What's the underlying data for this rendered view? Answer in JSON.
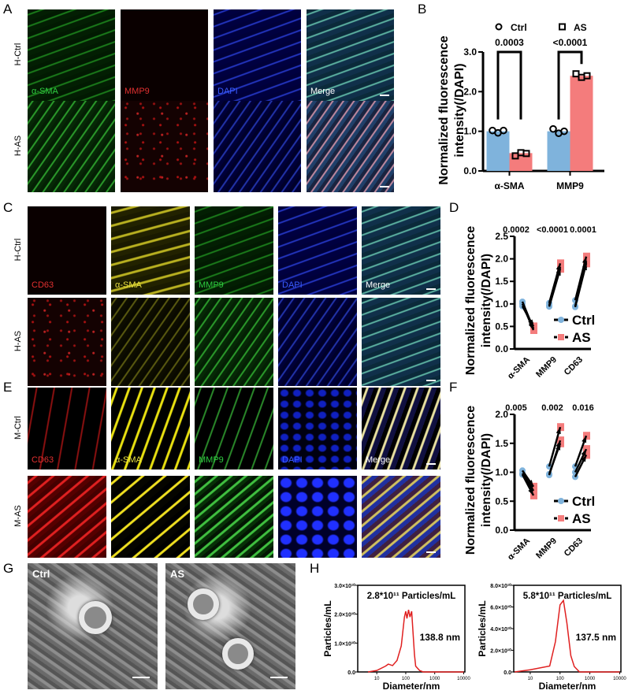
{
  "panel_letters": {
    "A": "A",
    "B": "B",
    "C": "C",
    "D": "D",
    "E": "E",
    "F": "F",
    "G": "G",
    "H": "H"
  },
  "panel_A": {
    "rows": [
      "H-Ctrl",
      "H-AS"
    ],
    "channels": [
      {
        "label": "α-SMA",
        "color": "#2ecc40"
      },
      {
        "label": "MMP9",
        "color": "#e03030"
      },
      {
        "label": "DAPI",
        "color": "#3a5cff"
      },
      {
        "label": "Merge",
        "color": "#ffffff"
      }
    ]
  },
  "panel_C": {
    "rows": [
      "H-Ctrl",
      "H-AS"
    ],
    "channels": [
      {
        "label": "CD63",
        "color": "#e03030"
      },
      {
        "label": "α-SMA",
        "color": "#e8e040"
      },
      {
        "label": "MMP9",
        "color": "#2ecc40"
      },
      {
        "label": "DAPI",
        "color": "#3a5cff"
      },
      {
        "label": "Merge",
        "color": "#ffffff"
      }
    ]
  },
  "panel_E": {
    "rows": [
      "M-Ctrl",
      "M-AS"
    ],
    "channels": [
      {
        "label": "CD63",
        "color": "#e03030"
      },
      {
        "label": "α-SMA",
        "color": "#e8e040"
      },
      {
        "label": "MMP9",
        "color": "#2ecc40"
      },
      {
        "label": "DAPI",
        "color": "#3a5cff"
      },
      {
        "label": "Merge",
        "color": "#ffffff"
      }
    ]
  },
  "panel_G": {
    "labels": [
      "Ctrl",
      "AS"
    ]
  },
  "colors": {
    "ctrl": "#7fb3dc",
    "as": "#f47c7c",
    "line": "#e02020"
  },
  "chart_data": [
    {
      "id": "B",
      "type": "bar",
      "title": "",
      "ylabel": [
        "Normalized fluorescence",
        "intensity(/DAPI)"
      ],
      "xlabel": "",
      "categories": [
        "α-SMA",
        "MMP9"
      ],
      "ylim": [
        0,
        3
      ],
      "yticks": [
        "0.0",
        "1.0",
        "2.0",
        "3.0"
      ],
      "legend": {
        "position": "top",
        "entries": [
          "Ctrl",
          "AS"
        ]
      },
      "series": [
        {
          "name": "Ctrl",
          "values": [
            1.0,
            1.0
          ],
          "points": [
            [
              1.02,
              0.96,
              1.02
            ],
            [
              1.06,
              0.95,
              1.0
            ]
          ]
        },
        {
          "name": "AS",
          "values": [
            0.45,
            2.4
          ],
          "points": [
            [
              0.38,
              0.46,
              0.44
            ],
            [
              2.45,
              2.36,
              2.4
            ]
          ]
        }
      ],
      "p_values": [
        "0.0003",
        "<0.0001"
      ]
    },
    {
      "id": "D",
      "type": "line",
      "ylabel": [
        "Normalized fluorescence",
        "intensity(/DAPI)"
      ],
      "categories": [
        "α-SMA",
        "MMP9",
        "CD63"
      ],
      "ylim": [
        0,
        2.5
      ],
      "yticks": [
        "0.0",
        "0.5",
        "1.0",
        "1.5",
        "2.0",
        "2.5"
      ],
      "legend": {
        "position": "bottom-right",
        "entries": [
          "Ctrl",
          "AS"
        ]
      },
      "series": [
        {
          "name": "Ctrl",
          "points": [
            [
              1.05,
              1.0,
              0.95
            ],
            [
              1.02,
              0.97,
              0.94
            ],
            [
              1.08,
              0.95,
              0.93
            ]
          ]
        },
        {
          "name": "AS",
          "points": [
            [
              0.45,
              0.42,
              0.5
            ],
            [
              1.9,
              1.82,
              1.78
            ],
            [
              2.05,
              1.95,
              1.9
            ]
          ]
        }
      ],
      "p_values": [
        "0.0002",
        "<0.0001",
        "0.0001"
      ]
    },
    {
      "id": "F",
      "type": "line",
      "ylabel": [
        "Normalized fluorescence",
        "intensity(/DAPI)"
      ],
      "categories": [
        "α-SMA",
        "MMP9",
        "CD63"
      ],
      "ylim": [
        0,
        2.0
      ],
      "yticks": [
        "0.0",
        "0.5",
        "1.0",
        "1.5",
        "2.0"
      ],
      "legend": {
        "position": "bottom-right",
        "entries": [
          "Ctrl",
          "AS"
        ]
      },
      "series": [
        {
          "name": "Ctrl",
          "points": [
            [
              1.03,
              0.98,
              0.96
            ],
            [
              1.1,
              0.95,
              0.97
            ],
            [
              1.1,
              1.0,
              0.92
            ]
          ]
        },
        {
          "name": "AS",
          "points": [
            [
              0.75,
              0.68,
              0.6
            ],
            [
              1.78,
              1.55,
              1.5
            ],
            [
              1.63,
              1.4,
              1.3
            ]
          ]
        }
      ],
      "p_values": [
        "0.005",
        "0.002",
        "0.016"
      ]
    },
    {
      "id": "H1",
      "type": "line",
      "xlabel": "Diameter/nm",
      "ylabel": "Particles/mL",
      "xscale": "log",
      "xlim": [
        2.2,
        11000
      ],
      "ylim": [
        0,
        3.0
      ],
      "xticks": [
        "10",
        "100",
        "1000",
        "10000"
      ],
      "yticks": [
        "0.0",
        "1.0×10¹⁰",
        "2.0×10¹⁰",
        "3.0×10¹⁰"
      ],
      "annotation": "2.8*10¹¹ Particles/mL",
      "peak_label": "138.8 nm",
      "y_unit": "1e10 particles/mL",
      "x": [
        5,
        10,
        20,
        25,
        35,
        50,
        70,
        90,
        100,
        110,
        125,
        140,
        160,
        180,
        200,
        220,
        300,
        400,
        10000
      ],
      "y": [
        0,
        0.05,
        0.2,
        0.27,
        0.22,
        0.4,
        0.9,
        1.9,
        2.1,
        1.85,
        2.15,
        1.9,
        2.1,
        1.3,
        0.6,
        0.2,
        0.05,
        0,
        0
      ]
    },
    {
      "id": "H2",
      "type": "line",
      "xlabel": "Diameter/nm",
      "ylabel": "Particles/mL",
      "xscale": "log",
      "xlim": [
        2.8,
        11000
      ],
      "ylim": [
        0,
        8.0
      ],
      "xticks": [
        "10",
        "100",
        "1000",
        "10000"
      ],
      "yticks": [
        "0.0",
        "2.0×10¹⁰",
        "4.0×10¹⁰",
        "6.0×10¹⁰",
        "8.0×10¹⁰"
      ],
      "annotation": "5.8*10¹¹ Particles/mL",
      "peak_label": "137.5 nm",
      "y_unit": "1e10 particles/mL",
      "x": [
        3,
        10,
        45,
        70,
        100,
        130,
        170,
        230,
        300,
        450,
        10000
      ],
      "y": [
        0,
        0.2,
        0.55,
        2.8,
        6.2,
        6.6,
        4.5,
        1.5,
        0.5,
        0,
        0
      ]
    }
  ]
}
